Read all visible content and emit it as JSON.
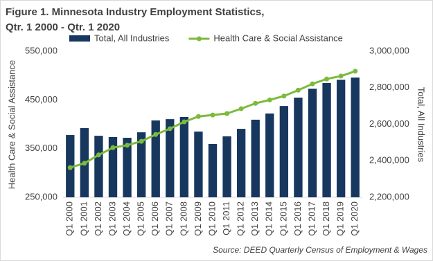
{
  "chart_data": {
    "type": "combo",
    "title_lines": [
      "Figure 1. Minnesota Industry Employment Statistics,",
      "Qtr. 1 2000 - Qtr. 1 2020"
    ],
    "ylabel": "Health Care & Social Assistance",
    "y2label": "Total, All Industries",
    "source": "Source: DEED Quarterly Census of Employment & Wages",
    "categories": [
      "Q1 2000",
      "Q1 2001",
      "Q1 2002",
      "Q1 2003",
      "Q1 2004",
      "Q1 2005",
      "Q1 2006",
      "Q1 2007",
      "Q1 2008",
      "Q1 2009",
      "Q1 2010",
      "Q1 2011",
      "Q1 2012",
      "Q1 2013",
      "Q1 2014",
      "Q1 2015",
      "Q1 2016",
      "Q1 2017",
      "Q1 2018",
      "Q1 2019",
      "Q1 2020"
    ],
    "series": [
      {
        "name": "Total, All Industries",
        "type": "bar",
        "axis": "y2",
        "color": "#17375e",
        "values": [
          2541000,
          2579000,
          2537000,
          2530000,
          2526000,
          2556000,
          2621000,
          2628000,
          2640000,
          2560000,
          2492000,
          2534000,
          2575000,
          2625000,
          2659000,
          2700000,
          2746000,
          2795000,
          2826000,
          2844000,
          2856000
        ]
      },
      {
        "name": "Health Care & Social Assistance",
        "type": "line",
        "axis": "y",
        "color": "#7cba3c",
        "values": [
          311000,
          320000,
          337000,
          352000,
          357000,
          365000,
          379000,
          391000,
          405000,
          416000,
          419000,
          422000,
          432000,
          443000,
          450000,
          458000,
          470000,
          483000,
          493000,
          499000,
          509000
        ]
      }
    ],
    "ylim": [
      250000,
      550000
    ],
    "yticks": [
      {
        "value": 250000,
        "label": "250,000"
      },
      {
        "value": 350000,
        "label": "350,000"
      },
      {
        "value": 450000,
        "label": "450,000"
      },
      {
        "value": 550000,
        "label": "550,000"
      }
    ],
    "y2lim": [
      2200000,
      3000000
    ],
    "y2ticks": [
      {
        "value": 2200000,
        "label": "2,200,000"
      },
      {
        "value": 2400000,
        "label": "2,400,000"
      },
      {
        "value": 2600000,
        "label": "2,600,000"
      },
      {
        "value": 2800000,
        "label": "2,800,000"
      },
      {
        "value": 3000000,
        "label": "3,000,000"
      }
    ],
    "legend": "top"
  }
}
